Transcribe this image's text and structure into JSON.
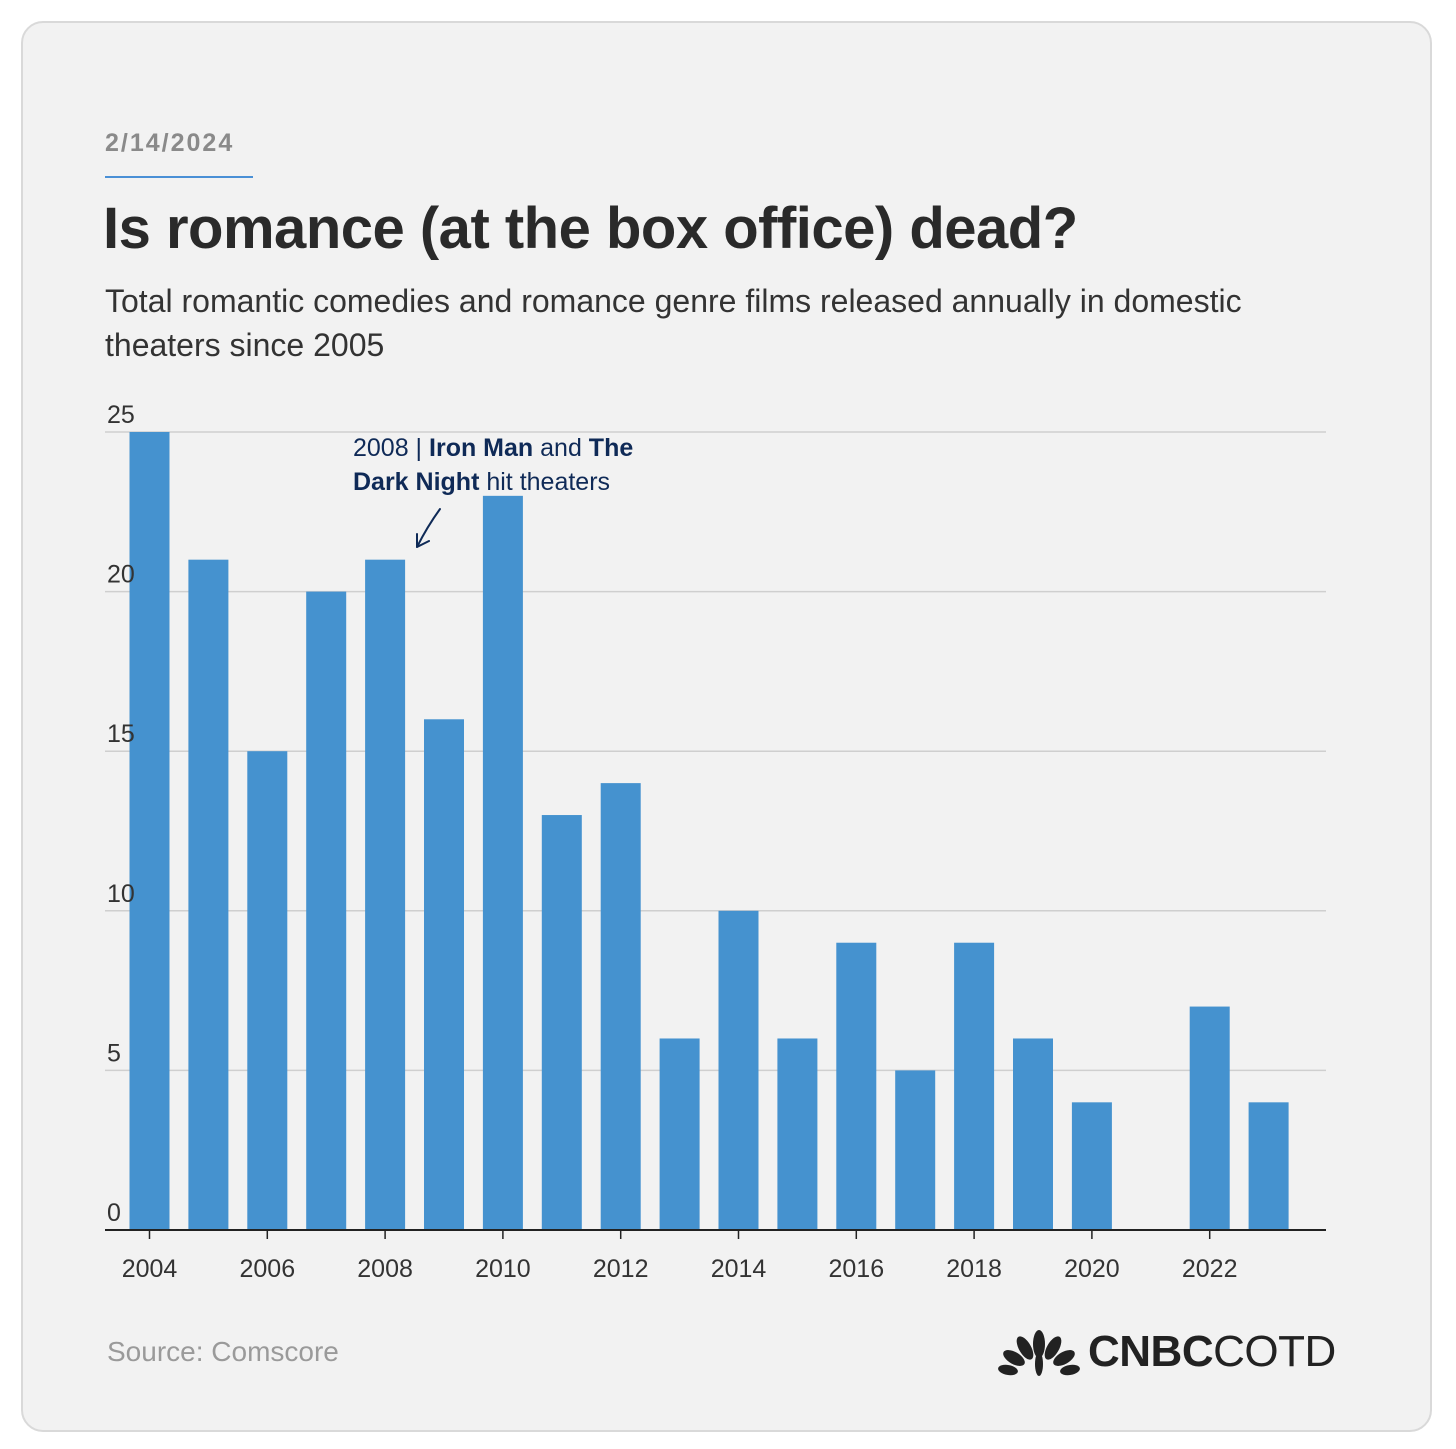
{
  "header": {
    "date": "2/14/2024",
    "title": "Is romance (at the box office) dead?",
    "subtitle": "Total romantic comedies and romance genre films released annually in domestic theaters since 2005"
  },
  "annotation": {
    "year_part": "2008 | ",
    "film1": "Iron Man",
    "and_part": " and ",
    "film2_line1": "The",
    "film2_line2": "Dark Night",
    "tail_part": " hit theaters"
  },
  "footer": {
    "source": "Source: Comscore",
    "brand_bold": "CNBC",
    "brand_light": "COTD"
  },
  "colors": {
    "bar": "#4592cf",
    "annotation": "#0f2a57",
    "grid": "#cfcfcf"
  },
  "chart_data": {
    "type": "bar",
    "title": "Is romance (at the box office) dead?",
    "xlabel": "",
    "ylabel": "",
    "ylim": [
      0,
      25
    ],
    "yticks": [
      0,
      5,
      10,
      15,
      20,
      25
    ],
    "categories": [
      "2004",
      "2005",
      "2006",
      "2007",
      "2008",
      "2009",
      "2010",
      "2011",
      "2012",
      "2013",
      "2014",
      "2015",
      "2016",
      "2017",
      "2018",
      "2019",
      "2020",
      "2021",
      "2022",
      "2023"
    ],
    "values": [
      25,
      21,
      15,
      20,
      21,
      16,
      23,
      13,
      14,
      6,
      10,
      6,
      9,
      5,
      9,
      6,
      4,
      0,
      7,
      4
    ],
    "tick_labels": [
      "2004",
      "2006",
      "2008",
      "2010",
      "2012",
      "2014",
      "2016",
      "2018",
      "2020",
      "2022"
    ],
    "grid": true
  }
}
